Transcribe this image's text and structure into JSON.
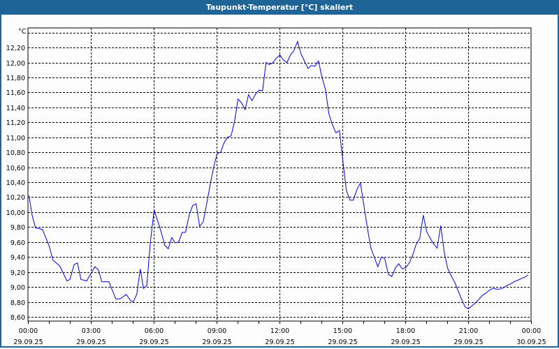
{
  "window": {
    "title": "Taupunkt-Temperatur [°C] skaliert"
  },
  "chart_data": {
    "type": "line",
    "title": "Taupunkt-Temperatur [°C] skaliert",
    "ylabel": "°C",
    "xlabel": "",
    "ylim": [
      8.6,
      12.4
    ],
    "xlim_hours": [
      0,
      24
    ],
    "grid": true,
    "y_ticks": [
      "8,60",
      "8,80",
      "9,00",
      "9,20",
      "9,40",
      "9,60",
      "9,80",
      "10,00",
      "10,20",
      "10,40",
      "10,60",
      "10,80",
      "11,00",
      "11,20",
      "11,40",
      "11,60",
      "11,80",
      "12,00",
      "12,20"
    ],
    "x_ticks": [
      {
        "time": "00:00",
        "date": "29.09.25"
      },
      {
        "time": "03:00",
        "date": "29.09.25"
      },
      {
        "time": "06:00",
        "date": "29.09.25"
      },
      {
        "time": "09:00",
        "date": "29.09.25"
      },
      {
        "time": "12:00",
        "date": "29.09.25"
      },
      {
        "time": "15:00",
        "date": "29.09.25"
      },
      {
        "time": "18:00",
        "date": "29.09.25"
      },
      {
        "time": "21:00",
        "date": "29.09.25"
      },
      {
        "time": "00:00",
        "date": "30.09.25"
      }
    ],
    "series": [
      {
        "name": "Taupunkt-Temperatur",
        "color": "#0000ff",
        "x_hours": [
          0.05,
          0.19,
          0.36,
          0.69,
          1.02,
          1.19,
          1.52,
          1.86,
          2.0,
          2.2,
          2.36,
          2.53,
          2.8,
          3.19,
          3.36,
          3.52,
          3.86,
          4.19,
          4.39,
          4.69,
          4.89,
          5.02,
          5.19,
          5.36,
          5.51,
          5.67,
          5.84,
          6.02,
          6.36,
          6.52,
          6.69,
          6.86,
          7.02,
          7.19,
          7.36,
          7.52,
          7.69,
          7.86,
          8.02,
          8.19,
          8.36,
          8.56,
          8.72,
          8.86,
          9.02,
          9.19,
          9.36,
          9.52,
          9.69,
          9.86,
          10.02,
          10.19,
          10.36,
          10.52,
          10.69,
          10.86,
          11.02,
          11.19,
          11.36,
          11.52,
          11.69,
          11.86,
          12.02,
          12.19,
          12.36,
          12.52,
          12.69,
          12.86,
          13.02,
          13.19,
          13.36,
          13.52,
          13.69,
          13.86,
          14.02,
          14.19,
          14.36,
          14.52,
          14.69,
          14.86,
          15.02,
          15.19,
          15.36,
          15.52,
          15.69,
          15.86,
          16.19,
          16.36,
          16.69,
          16.86,
          17.02,
          17.19,
          17.36,
          17.52,
          17.69,
          17.86,
          18.02,
          18.19,
          18.36,
          18.52,
          18.69,
          18.86,
          19.02,
          19.19,
          19.36,
          19.52,
          19.69,
          19.86,
          20.02,
          20.19,
          20.36,
          20.52,
          20.69,
          20.86,
          21.02,
          21.19,
          21.36,
          21.52,
          21.69,
          21.86,
          22.02,
          22.19,
          22.36,
          22.52,
          22.69,
          22.86,
          23.02,
          23.19,
          23.36,
          23.52,
          23.69,
          23.86
        ],
        "values": [
          10.22,
          9.97,
          9.79,
          9.77,
          9.54,
          9.36,
          9.28,
          9.08,
          9.1,
          9.3,
          9.32,
          9.1,
          9.08,
          9.27,
          9.23,
          9.07,
          9.07,
          8.84,
          8.84,
          8.9,
          8.82,
          8.8,
          8.9,
          9.24,
          8.98,
          9.02,
          9.6,
          10.03,
          9.73,
          9.56,
          9.51,
          9.66,
          9.59,
          9.6,
          9.73,
          9.73,
          9.96,
          10.09,
          10.11,
          9.81,
          9.87,
          10.16,
          10.41,
          10.6,
          10.78,
          10.8,
          10.93,
          11.0,
          11.02,
          11.22,
          11.51,
          11.46,
          11.37,
          11.57,
          11.49,
          11.58,
          11.63,
          11.62,
          12.0,
          11.97,
          12.0,
          12.06,
          12.1,
          12.03,
          12.0,
          12.1,
          12.16,
          12.28,
          12.12,
          12.02,
          11.92,
          11.96,
          11.95,
          12.02,
          11.81,
          11.64,
          11.31,
          11.17,
          11.06,
          11.09,
          10.69,
          10.29,
          10.16,
          10.16,
          10.3,
          10.39,
          9.79,
          9.52,
          9.27,
          9.4,
          9.38,
          9.17,
          9.14,
          9.25,
          9.31,
          9.24,
          9.26,
          9.32,
          9.43,
          9.57,
          9.65,
          9.96,
          9.74,
          9.65,
          9.57,
          9.52,
          9.82,
          9.46,
          9.25,
          9.15,
          9.06,
          8.95,
          8.83,
          8.73,
          8.71,
          8.75,
          8.79,
          8.84,
          8.89,
          8.92,
          8.96,
          8.98,
          8.97,
          8.97,
          8.99,
          9.02,
          9.04,
          9.07,
          9.09,
          9.11,
          9.13,
          9.16
        ]
      }
    ]
  }
}
